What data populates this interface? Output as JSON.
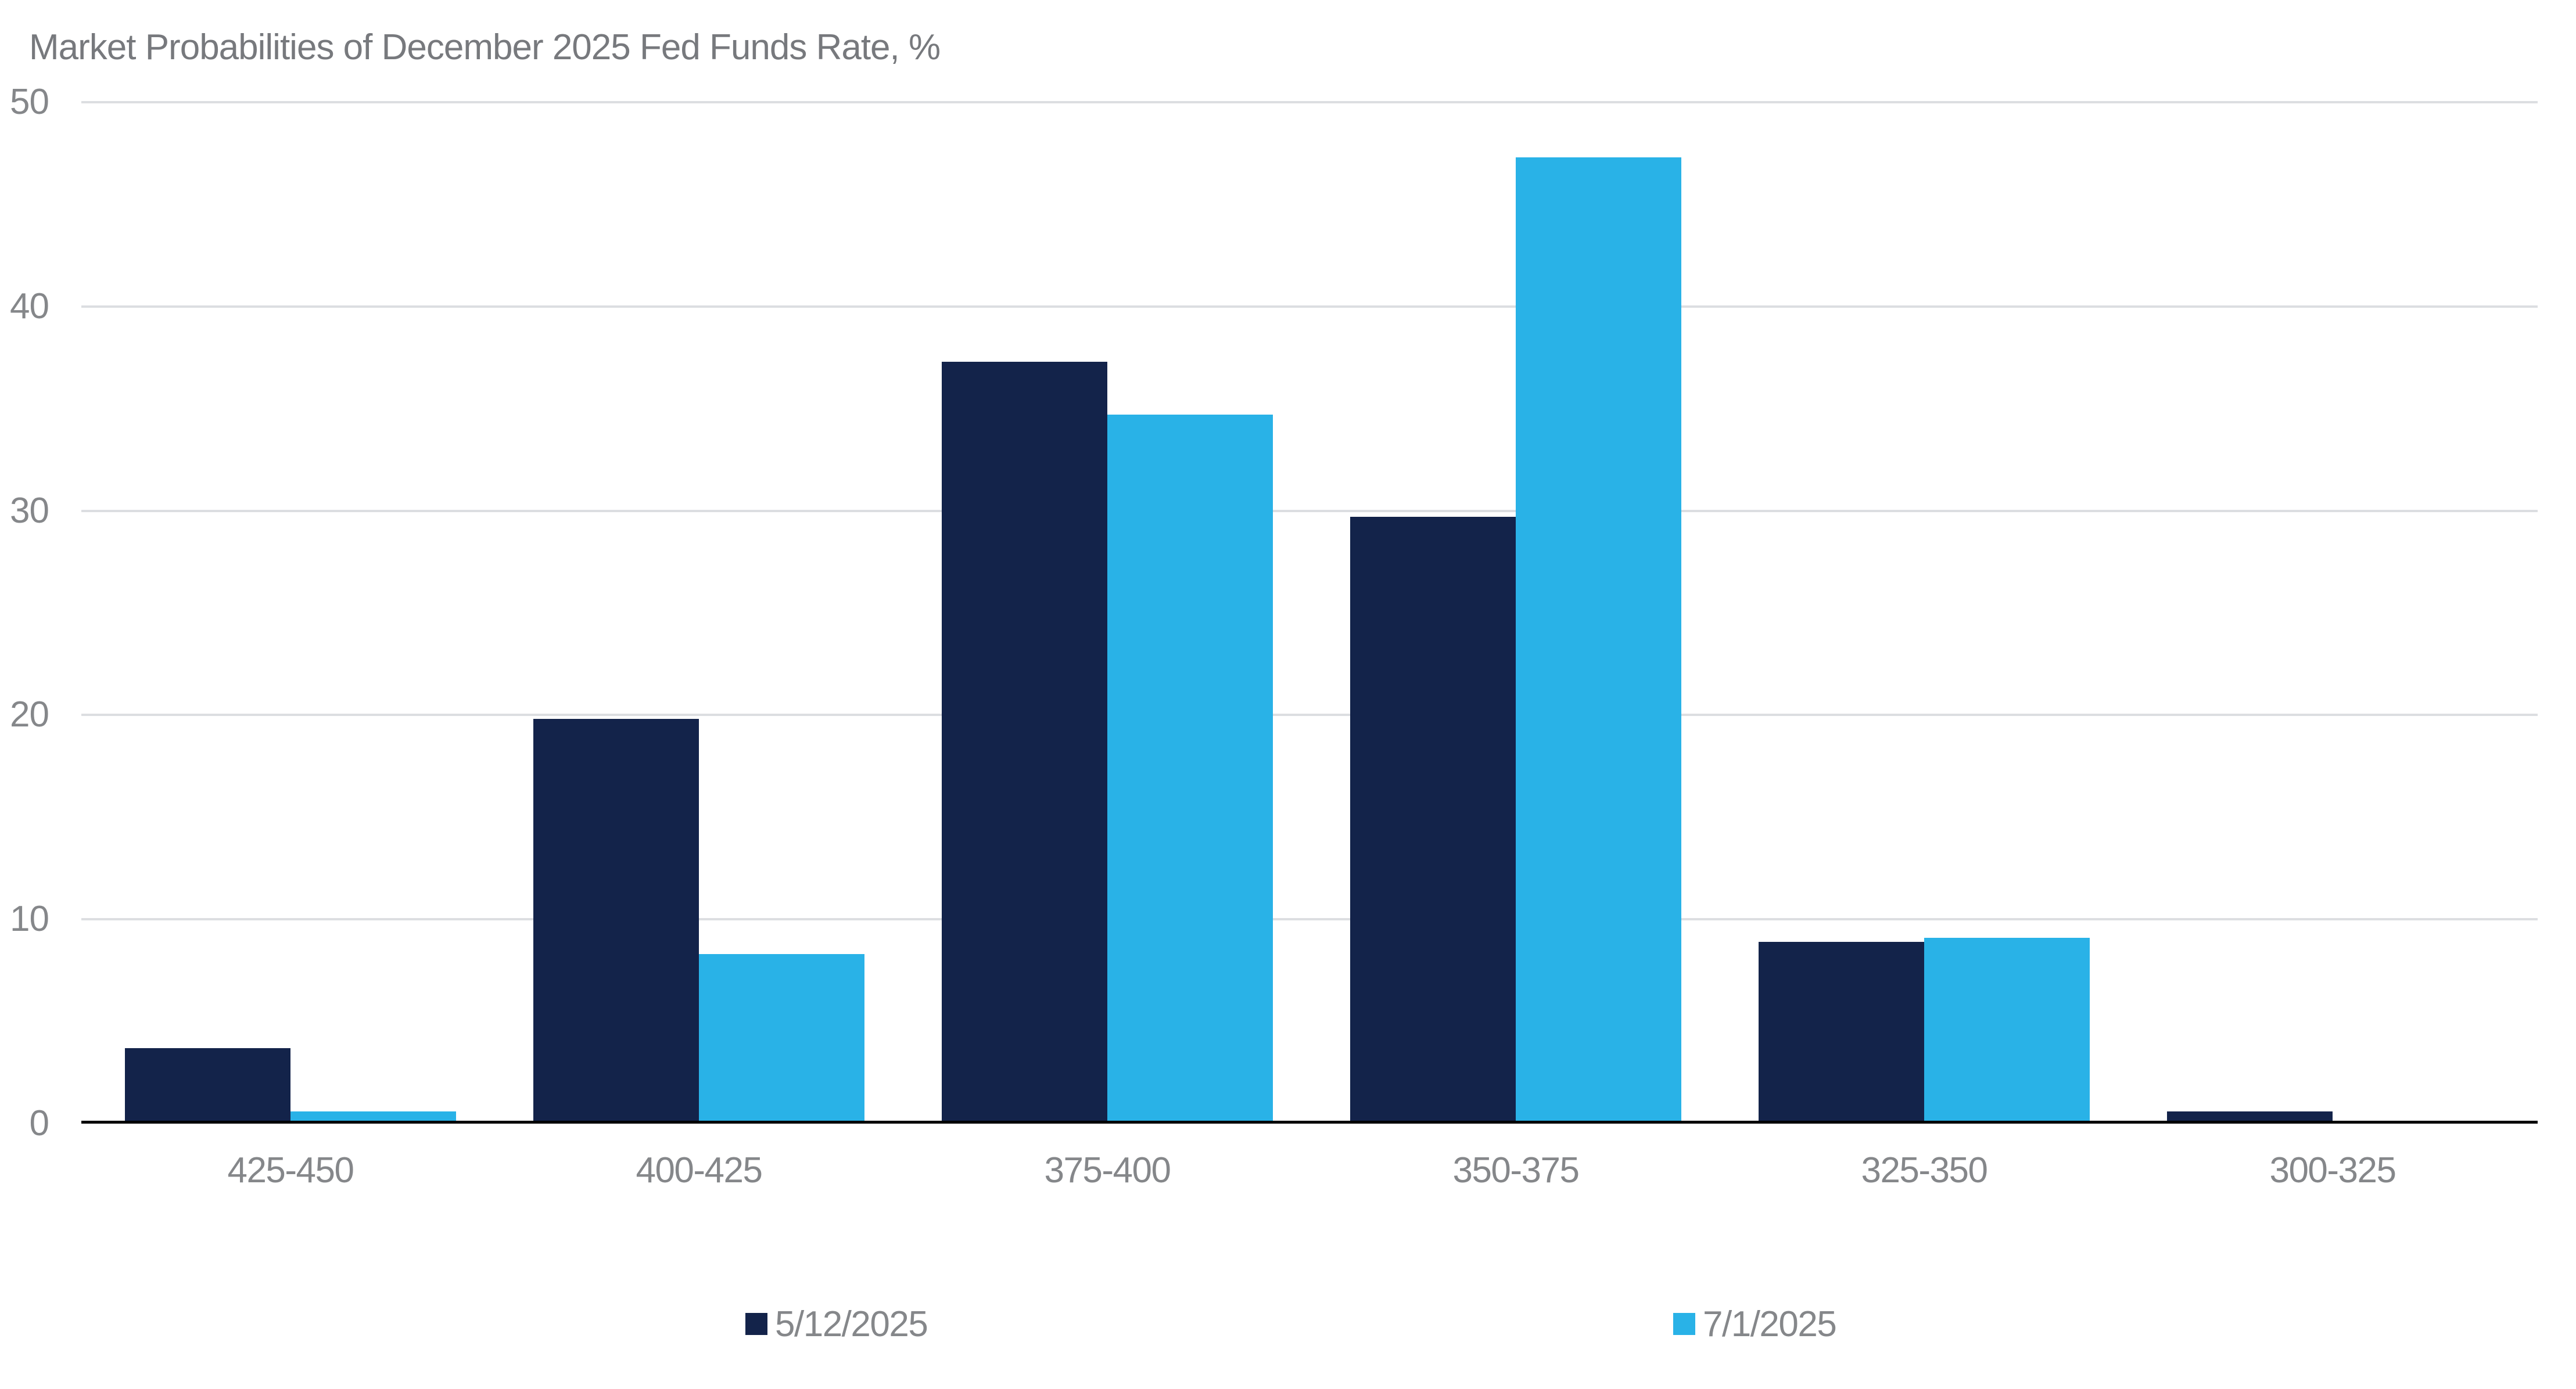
{
  "chart_data": {
    "type": "bar",
    "title": "Market Probabilities of December 2025 Fed Funds Rate, %",
    "categories": [
      "425-450",
      "400-425",
      "375-400",
      "350-375",
      "325-350",
      "300-325"
    ],
    "series": [
      {
        "name": "5/12/2025",
        "color": "#13234a",
        "values": [
          3.7,
          19.8,
          37.3,
          29.7,
          8.9,
          0.6
        ]
      },
      {
        "name": "7/1/2025",
        "color": "#29b2e7",
        "values": [
          0.6,
          8.3,
          34.7,
          47.3,
          9.1,
          0.0
        ]
      }
    ],
    "xlabel": "",
    "ylabel": "",
    "ylim": [
      0,
      50
    ],
    "yticks": [
      0,
      10,
      20,
      30,
      40,
      50
    ],
    "grid": true,
    "legend_position": "bottom",
    "colors": {
      "gridline": "#dcdee1",
      "axis_line": "#000000",
      "text": "#85878a",
      "title_text": "#77797d"
    }
  }
}
